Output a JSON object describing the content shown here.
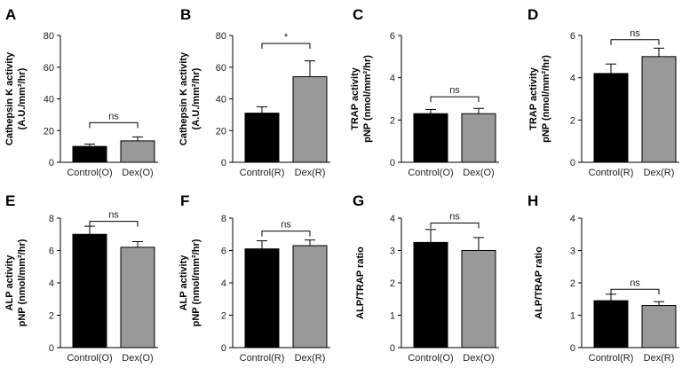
{
  "chart_data": [
    {
      "panel": "A",
      "type": "bar",
      "categories": [
        "Control(O)",
        "Dex(O)"
      ],
      "values": [
        10,
        13.5
      ],
      "errors": [
        1.5,
        2.5
      ],
      "colors": [
        "#000000",
        "#999999"
      ],
      "ylabel_lines": [
        "Cathepsin K activity",
        "(A.U./mm²/hr)"
      ],
      "ylim": [
        0,
        80
      ],
      "yticks": [
        0,
        20,
        40,
        60,
        80
      ],
      "significance": {
        "label": "ns",
        "y": 25
      }
    },
    {
      "panel": "B",
      "type": "bar",
      "categories": [
        "Control(R)",
        "Dex(R)"
      ],
      "values": [
        31,
        54
      ],
      "errors": [
        4,
        10
      ],
      "colors": [
        "#000000",
        "#999999"
      ],
      "ylabel_lines": [
        "Cathepsin K activity",
        "(A.U./mm²/hr)"
      ],
      "ylim": [
        0,
        80
      ],
      "yticks": [
        0,
        20,
        40,
        60,
        80
      ],
      "significance": {
        "label": "*",
        "y": 75
      }
    },
    {
      "panel": "C",
      "type": "bar",
      "categories": [
        "Control(O)",
        "Dex(O)"
      ],
      "values": [
        2.3,
        2.3
      ],
      "errors": [
        0.2,
        0.25
      ],
      "colors": [
        "#000000",
        "#999999"
      ],
      "ylabel_lines": [
        "TRAP activity",
        "pNP (nmol/mm²/hr)"
      ],
      "ylim": [
        0,
        6
      ],
      "yticks": [
        0,
        2,
        4,
        6
      ],
      "significance": {
        "label": "ns",
        "y": 3.1
      }
    },
    {
      "panel": "D",
      "type": "bar",
      "categories": [
        "Control(R)",
        "Dex(R)"
      ],
      "values": [
        4.2,
        5.0
      ],
      "errors": [
        0.45,
        0.4
      ],
      "colors": [
        "#000000",
        "#999999"
      ],
      "ylabel_lines": [
        "TRAP activity",
        "pNP (nmol/mm²/hr)"
      ],
      "ylim": [
        0,
        6
      ],
      "yticks": [
        0,
        2,
        4,
        6
      ],
      "significance": {
        "label": "ns",
        "y": 5.8
      }
    },
    {
      "panel": "E",
      "type": "bar",
      "categories": [
        "Control(O)",
        "Dex(O)"
      ],
      "values": [
        7.0,
        6.2
      ],
      "errors": [
        0.5,
        0.35
      ],
      "colors": [
        "#000000",
        "#999999"
      ],
      "ylabel_lines": [
        "ALP activity",
        "pNP (nmol/mm²/hr)"
      ],
      "ylim": [
        0,
        8
      ],
      "yticks": [
        0,
        2,
        4,
        6,
        8
      ],
      "significance": {
        "label": "ns",
        "y": 7.8
      }
    },
    {
      "panel": "F",
      "type": "bar",
      "categories": [
        "Control(R)",
        "Dex(R)"
      ],
      "values": [
        6.1,
        6.3
      ],
      "errors": [
        0.5,
        0.35
      ],
      "colors": [
        "#000000",
        "#999999"
      ],
      "ylabel_lines": [
        "ALP activity",
        "pNP (nmol/mm²/hr)"
      ],
      "ylim": [
        0,
        8
      ],
      "yticks": [
        0,
        2,
        4,
        6,
        8
      ],
      "significance": {
        "label": "ns",
        "y": 7.2
      }
    },
    {
      "panel": "G",
      "type": "bar",
      "categories": [
        "Control(O)",
        "Dex(O)"
      ],
      "values": [
        3.25,
        3.0
      ],
      "errors": [
        0.4,
        0.4
      ],
      "colors": [
        "#000000",
        "#999999"
      ],
      "ylabel_lines": [
        "ALP/TRAP ratio"
      ],
      "ylim": [
        0,
        4
      ],
      "yticks": [
        0,
        1,
        2,
        3,
        4
      ],
      "significance": {
        "label": "ns",
        "y": 3.85
      }
    },
    {
      "panel": "H",
      "type": "bar",
      "categories": [
        "Control(R)",
        "Dex(R)"
      ],
      "values": [
        1.45,
        1.3
      ],
      "errors": [
        0.2,
        0.12
      ],
      "colors": [
        "#000000",
        "#999999"
      ],
      "ylabel_lines": [
        "ALP/TRAP ratio"
      ],
      "ylim": [
        0,
        4
      ],
      "yticks": [
        0,
        1,
        2,
        3,
        4
      ],
      "significance": {
        "label": "ns",
        "y": 1.8
      }
    }
  ]
}
